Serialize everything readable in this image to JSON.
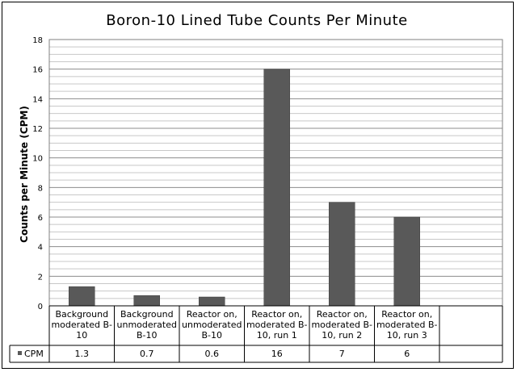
{
  "chart_data": {
    "type": "bar",
    "title": "Boron-10 Lined Tube Counts Per Minute",
    "ylabel": "Counts per Minute (CPM)",
    "xlabel": "",
    "ylim": [
      0,
      18
    ],
    "ytick_step": 2,
    "ytick_labels": [
      "0",
      "2",
      "4",
      "6",
      "8",
      "10",
      "12",
      "14",
      "16",
      "18"
    ],
    "grid": true,
    "categories": [
      [
        "Background",
        "moderated B-",
        "10"
      ],
      [
        "Background",
        "unmoderated",
        "B-10"
      ],
      [
        "Reactor on,",
        "unmoderated",
        "B-10"
      ],
      [
        "Reactor on,",
        "moderated B-",
        "10, run 1"
      ],
      [
        "Reactor on,",
        "moderated B-",
        "10, run 2"
      ],
      [
        "Reactor on,",
        "moderated B-",
        "10, run 3"
      ]
    ],
    "series": [
      {
        "name": "CPM",
        "color": "#595959",
        "values": [
          1.3,
          0.7,
          0.6,
          16,
          7,
          6
        ],
        "value_labels": [
          "1.3",
          "0.7",
          "0.6",
          "16",
          "7",
          "6"
        ]
      }
    ],
    "data_table": true
  }
}
